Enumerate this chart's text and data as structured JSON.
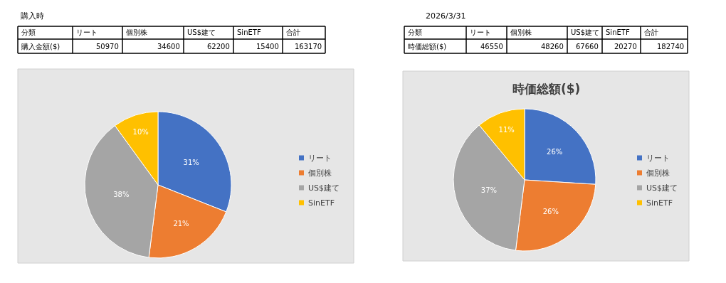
{
  "chart_data": [
    {
      "type": "pie",
      "subtitle": "購入時",
      "categories": [
        "リート",
        "個別株",
        "US$建て",
        "SinETF"
      ],
      "values": [
        31,
        21,
        38,
        10
      ],
      "colors": [
        "#4472c4",
        "#ed7d31",
        "#a5a5a5",
        "#ffc000"
      ],
      "value_labels": [
        "31%",
        "21%",
        "38%",
        "10%"
      ],
      "legend": "right",
      "annotations": [
        "分類",
        "リート",
        "個別株",
        "US$建て",
        "SinETF",
        "合計",
        "購入金額($)",
        "50970",
        "34600",
        "62200",
        "15400",
        "163170"
      ]
    },
    {
      "type": "pie",
      "title": "時価総額($)",
      "subtitle": "2026/3/31",
      "categories": [
        "リート",
        "個別株",
        "US$建て",
        "SinETF"
      ],
      "values": [
        26,
        26,
        37,
        11
      ],
      "colors": [
        "#4472c4",
        "#ed7d31",
        "#a5a5a5",
        "#ffc000"
      ],
      "value_labels": [
        "26%",
        "26%",
        "37%",
        "11%"
      ],
      "legend": "right",
      "annotations": [
        "分類",
        "リート",
        "個別株",
        "US$建て",
        "SinETF",
        "合計",
        "時価総額($)",
        "46550",
        "48260",
        "67660",
        "20270",
        "182740"
      ]
    }
  ]
}
